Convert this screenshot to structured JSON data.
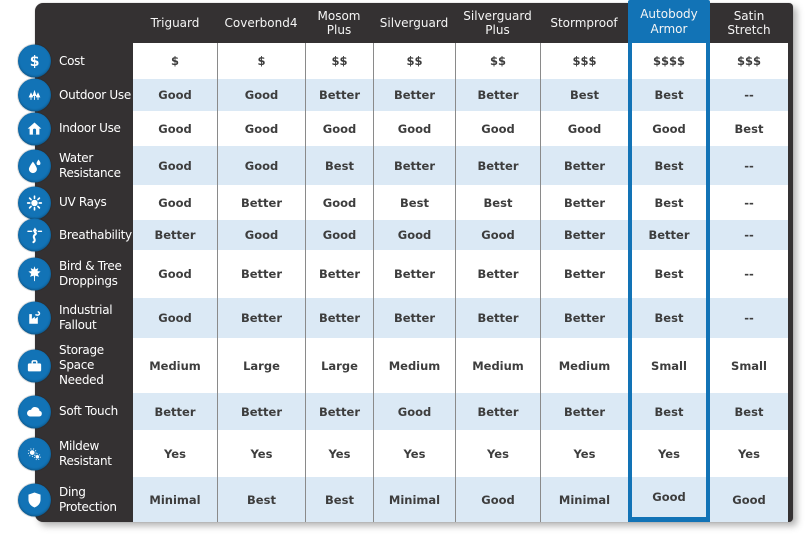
{
  "colors": {
    "accent_blue": "#1273b6",
    "panel_dark": "#343132",
    "row_alt_blue": "#dbe9f5",
    "separator_gray": "#8a8a8a",
    "body_text": "#3d3d3d"
  },
  "table": {
    "columns": [
      {
        "label": "Triguard",
        "highlighted": false
      },
      {
        "label": "Coverbond4",
        "highlighted": false
      },
      {
        "label": "Mosom Plus",
        "highlighted": false
      },
      {
        "label": "Silverguard",
        "highlighted": false
      },
      {
        "label": "Silverguard Plus",
        "highlighted": false
      },
      {
        "label": "Stormproof",
        "highlighted": false
      },
      {
        "label": "Autobody Armor",
        "highlighted": true
      },
      {
        "label": "Satin Stretch",
        "highlighted": false
      }
    ],
    "rows": [
      {
        "label": "Cost",
        "icon": "dollar-icon",
        "values": [
          "$",
          "$",
          "$$",
          "$$",
          "$$",
          "$$$",
          "$$$$",
          "$$$"
        ]
      },
      {
        "label": "Outdoor Use",
        "icon": "trees-icon",
        "values": [
          "Good",
          "Good",
          "Better",
          "Better",
          "Better",
          "Best",
          "Best",
          "--"
        ]
      },
      {
        "label": "Indoor Use",
        "icon": "house-icon",
        "values": [
          "Good",
          "Good",
          "Good",
          "Good",
          "Good",
          "Good",
          "Good",
          "Best"
        ]
      },
      {
        "label": "Water Resistance",
        "icon": "water-drop-icon",
        "values": [
          "Good",
          "Good",
          "Best",
          "Better",
          "Better",
          "Better",
          "Best",
          "--"
        ]
      },
      {
        "label": "UV Rays",
        "icon": "sun-icon",
        "values": [
          "Good",
          "Better",
          "Good",
          "Best",
          "Best",
          "Better",
          "Best",
          "--"
        ]
      },
      {
        "label": "Breathability",
        "icon": "breathability-icon",
        "values": [
          "Better",
          "Good",
          "Good",
          "Good",
          "Good",
          "Better",
          "Better",
          "--"
        ]
      },
      {
        "label": "Bird & Tree Droppings",
        "icon": "maple-leaf-icon",
        "values": [
          "Good",
          "Better",
          "Better",
          "Better",
          "Better",
          "Better",
          "Best",
          "--"
        ]
      },
      {
        "label": "Industrial Fallout",
        "icon": "factory-icon",
        "values": [
          "Good",
          "Better",
          "Better",
          "Better",
          "Better",
          "Better",
          "Best",
          "--"
        ]
      },
      {
        "label": "Storage Space Needed",
        "icon": "briefcase-icon",
        "values": [
          "Medium",
          "Large",
          "Large",
          "Medium",
          "Medium",
          "Medium",
          "Small",
          "Small"
        ]
      },
      {
        "label": "Soft Touch",
        "icon": "cloud-icon",
        "values": [
          "Better",
          "Better",
          "Better",
          "Good",
          "Better",
          "Better",
          "Best",
          "Best"
        ]
      },
      {
        "label": "Mildew Resistant",
        "icon": "mildew-icon",
        "values": [
          "Yes",
          "Yes",
          "Yes",
          "Yes",
          "Yes",
          "Yes",
          "Yes",
          "Yes"
        ]
      },
      {
        "label": "Ding Protection",
        "icon": "shield-icon",
        "values": [
          "Minimal",
          "Best",
          "Best",
          "Minimal",
          "Good",
          "Minimal",
          "Good",
          "Good"
        ]
      }
    ]
  }
}
